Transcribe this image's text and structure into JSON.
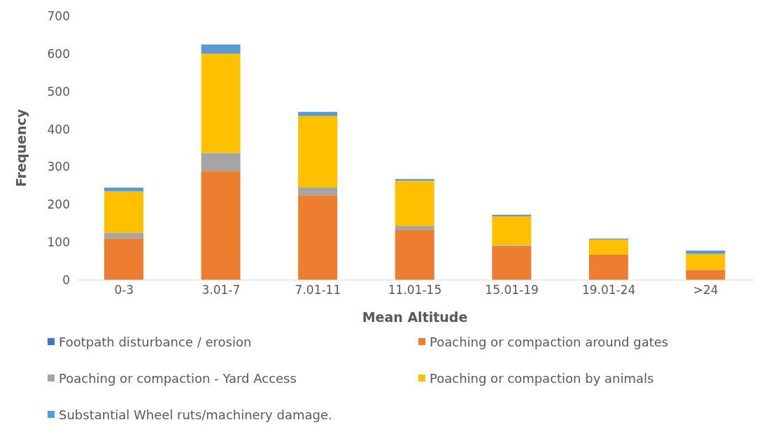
{
  "chart_data": {
    "type": "bar",
    "stacked": true,
    "xlabel": "Mean Altitude",
    "ylabel": "Frequency",
    "categories": [
      "0-3",
      "3.01-7",
      "7.01-11",
      "11.01-15",
      "15.01-19",
      "19.01-24",
      ">24"
    ],
    "series": [
      {
        "name": "Footpath disturbance / erosion",
        "color": "#4472c4",
        "values": [
          0,
          0,
          0,
          0,
          0,
          0,
          0
        ]
      },
      {
        "name": "Poaching or compaction around gates",
        "color": "#ed7d31",
        "values": [
          110,
          289,
          224,
          132,
          89,
          67,
          27
        ]
      },
      {
        "name": "Poaching or compaction - Yard Access",
        "color": "#a5a5a5",
        "values": [
          15,
          48,
          21,
          11,
          3,
          0,
          0
        ]
      },
      {
        "name": "Poaching or compaction by animals",
        "color": "#ffc000",
        "values": [
          110,
          263,
          190,
          120,
          77,
          40,
          42
        ]
      },
      {
        "name": "Substantial Wheel ruts/machinery damage.",
        "color": "#5b9bd5",
        "values": [
          10,
          25,
          11,
          5,
          4,
          3,
          9
        ]
      }
    ],
    "ylim": [
      0,
      700
    ],
    "yticks": [
      0,
      100,
      200,
      300,
      400,
      500,
      600,
      700
    ],
    "grid": false,
    "legend": "bottom"
  }
}
